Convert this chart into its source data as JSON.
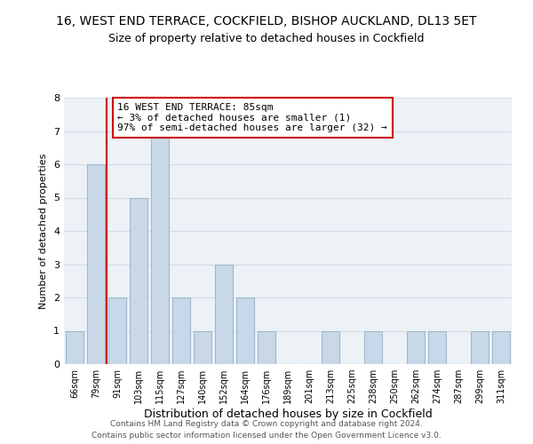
{
  "title": "16, WEST END TERRACE, COCKFIELD, BISHOP AUCKLAND, DL13 5ET",
  "subtitle": "Size of property relative to detached houses in Cockfield",
  "xlabel": "Distribution of detached houses by size in Cockfield",
  "ylabel": "Number of detached properties",
  "bin_labels": [
    "66sqm",
    "79sqm",
    "91sqm",
    "103sqm",
    "115sqm",
    "127sqm",
    "140sqm",
    "152sqm",
    "164sqm",
    "176sqm",
    "189sqm",
    "201sqm",
    "213sqm",
    "225sqm",
    "238sqm",
    "250sqm",
    "262sqm",
    "274sqm",
    "287sqm",
    "299sqm",
    "311sqm"
  ],
  "bar_heights": [
    1,
    6,
    2,
    5,
    7,
    2,
    1,
    3,
    2,
    1,
    0,
    0,
    1,
    0,
    1,
    0,
    1,
    1,
    0,
    1,
    1
  ],
  "bar_color": "#c8d8e8",
  "bar_edge_color": "#a0b8cc",
  "subject_line_color": "#cc0000",
  "annotation_title": "16 WEST END TERRACE: 85sqm",
  "annotation_line1": "← 3% of detached houses are smaller (1)",
  "annotation_line2": "97% of semi-detached houses are larger (32) →",
  "annotation_box_color": "#ffffff",
  "annotation_box_edge_color": "#cc0000",
  "footer_line1": "Contains HM Land Registry data © Crown copyright and database right 2024.",
  "footer_line2": "Contains public sector information licensed under the Open Government Licence v3.0.",
  "ylim": [
    0,
    8
  ],
  "yticks": [
    0,
    1,
    2,
    3,
    4,
    5,
    6,
    7,
    8
  ],
  "title_fontsize": 10,
  "subtitle_fontsize": 9,
  "ylabel_fontsize": 8,
  "xlabel_fontsize": 9,
  "grid_color": "#d0dce8",
  "background_color": "#edf2f7"
}
